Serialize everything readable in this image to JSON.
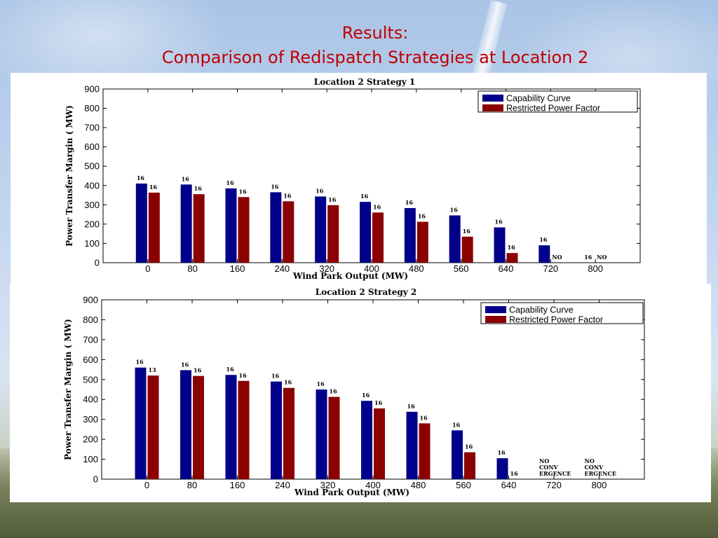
{
  "slide": {
    "title_line1": "Results:",
    "title_line2": "Comparison of Redispatch Strategies at Location 2"
  },
  "colors": {
    "capability": "#00008b",
    "restricted": "#8b0000",
    "title": "#c00000"
  },
  "chart_data": [
    {
      "type": "bar",
      "title": "Location 2 Strategy 1",
      "xlabel": "Wind Park Output  (MW)",
      "ylabel": "Power Transfer Margin ( MW)",
      "ylim": [
        0,
        900
      ],
      "yticks": [
        0,
        100,
        200,
        300,
        400,
        500,
        600,
        700,
        800,
        900
      ],
      "grid": false,
      "legend_position": "top-right",
      "categories": [
        "0",
        "80",
        "160",
        "240",
        "320",
        "400",
        "480",
        "560",
        "640",
        "720",
        "800"
      ],
      "series": [
        {
          "name": "Capability Curve",
          "values": [
            410,
            405,
            385,
            365,
            343,
            315,
            283,
            245,
            183,
            90,
            0
          ],
          "labels": [
            "16",
            "16",
            "16",
            "16",
            "16",
            "16",
            "16",
            "16",
            "16",
            "16",
            "16"
          ]
        },
        {
          "name": "Restricted Power Factor",
          "values": [
            363,
            355,
            340,
            318,
            298,
            260,
            212,
            135,
            50,
            0,
            0
          ],
          "labels": [
            "16",
            "16",
            "16",
            "16",
            "16",
            "16",
            "16",
            "16",
            "16",
            "NO",
            "NO"
          ]
        }
      ]
    },
    {
      "type": "bar",
      "title": "Location 2 Strategy 2",
      "xlabel": "Wind Park Output  (MW)",
      "ylabel": "Power Transfer Margin ( MW)",
      "ylim": [
        0,
        900
      ],
      "yticks": [
        0,
        100,
        200,
        300,
        400,
        500,
        600,
        700,
        800,
        900
      ],
      "grid": false,
      "legend_position": "top-right",
      "categories": [
        "0",
        "80",
        "160",
        "240",
        "320",
        "400",
        "480",
        "560",
        "640",
        "720",
        "800"
      ],
      "series": [
        {
          "name": "Capability Curve",
          "values": [
            560,
            547,
            523,
            490,
            450,
            393,
            338,
            245,
            105,
            0,
            0
          ],
          "labels": [
            "16",
            "16",
            "16",
            "16",
            "16",
            "16",
            "16",
            "16",
            "16",
            "NO\nCONV\nERGENCE",
            "NO\nCONV\nERGENCE"
          ]
        },
        {
          "name": "Restricted Power Factor",
          "values": [
            520,
            518,
            493,
            458,
            413,
            355,
            280,
            135,
            0,
            0,
            0
          ],
          "labels": [
            "13",
            "16",
            "16",
            "16",
            "16",
            "16",
            "16",
            "16",
            "16",
            "",
            ""
          ]
        }
      ]
    }
  ]
}
